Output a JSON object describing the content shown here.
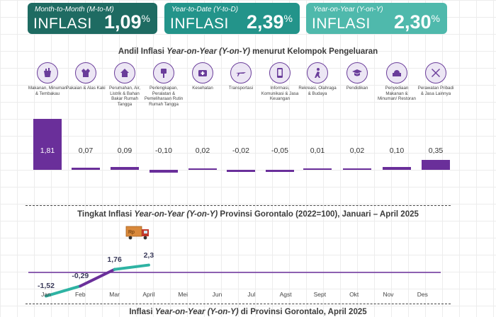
{
  "cards": [
    {
      "subtitle": "Month-to-Month (M-to-M)",
      "label": "INFLASI",
      "value": "1,09",
      "unit": "%"
    },
    {
      "subtitle": "Year-to-Date (Y-to-D)",
      "label": "INFLASI",
      "value": "2,39",
      "unit": "%"
    },
    {
      "subtitle": "Year-on-Year (Y-on-Y)",
      "label": "INFLASI",
      "value": "2,30",
      "unit": "%"
    }
  ],
  "titles": {
    "t1_pre": "Andil Inflasi ",
    "t1_em": "Year-on-Year (Y-on-Y)",
    "t1_post": " menurut Kelompok Pengeluaran",
    "t2_pre": "Tingkat Inflasi ",
    "t2_em": "Year-on-Year (Y-on-Y)",
    "t2_post": " Provinsi Gorontalo (2022=100), Januari – April 2025",
    "t3_pre": "Inflasi ",
    "t3_em": "Year-on-Year (Y-on-Y)",
    "t3_post": " di Provinsi Gorontalo, April 2025"
  },
  "truck_text": "Rp",
  "icons": [
    "food-icon",
    "clothing-icon",
    "house-icon",
    "tools-icon",
    "health-icon",
    "plane-icon",
    "phone-icon",
    "person-icon",
    "graduation-cap-icon",
    "restaurant-icon",
    "tools-cross-icon"
  ],
  "colors": {
    "bar": "#6a2f9a",
    "line_purple": "#6a2f9a",
    "line_teal": "#2eb3a3",
    "card1": "#1e6b62",
    "card2": "#23948a",
    "card3": "#4fb9ac"
  },
  "chart_data": [
    {
      "type": "bar",
      "categories": [
        "Makanan, Minuman & Tembakau",
        "Pakaian & Alas Kaki",
        "Perumahan, Air, Listrik & Bahan Bakar Rumah Tangga",
        "Perlengkapan, Peralatan & Pemeliharaan Rutin Rumah Tangga",
        "Kesehatan",
        "Transportasi",
        "Informasi, Komunikasi & Jasa Keuangan",
        "Rekreasi, Olahraga & Budaya",
        "Pendidikan",
        "Penyediaan Makanan & Minuman/ Restoran",
        "Perawatan Pribadi & Jasa Lainnya"
      ],
      "values": [
        1.81,
        0.07,
        0.09,
        -0.1,
        0.02,
        -0.02,
        -0.05,
        0.01,
        0.02,
        0.1,
        0.35
      ],
      "labels": [
        "1,81",
        "0,07",
        "0,09",
        "-0,10",
        "0,02",
        "-0,02",
        "-0,05",
        "0,01",
        "0,02",
        "0,10",
        "0,35"
      ],
      "title": "Andil Inflasi Year-on-Year (Y-on-Y) menurut Kelompok Pengeluaran"
    },
    {
      "type": "line",
      "x": [
        "Jan",
        "Feb",
        "Mar",
        "April",
        "Mei",
        "Jun",
        "Jul",
        "Agst",
        "Sept",
        "Okt",
        "Nov",
        "Des"
      ],
      "values": [
        -1.52,
        -0.29,
        1.76,
        2.3
      ],
      "labels": [
        "-1,52",
        "-0,29",
        "1,76",
        "2,3"
      ],
      "title": "Tingkat Inflasi Year-on-Year (Y-on-Y) Provinsi Gorontalo (2022=100), Januari – April 2025",
      "grid": false
    }
  ]
}
